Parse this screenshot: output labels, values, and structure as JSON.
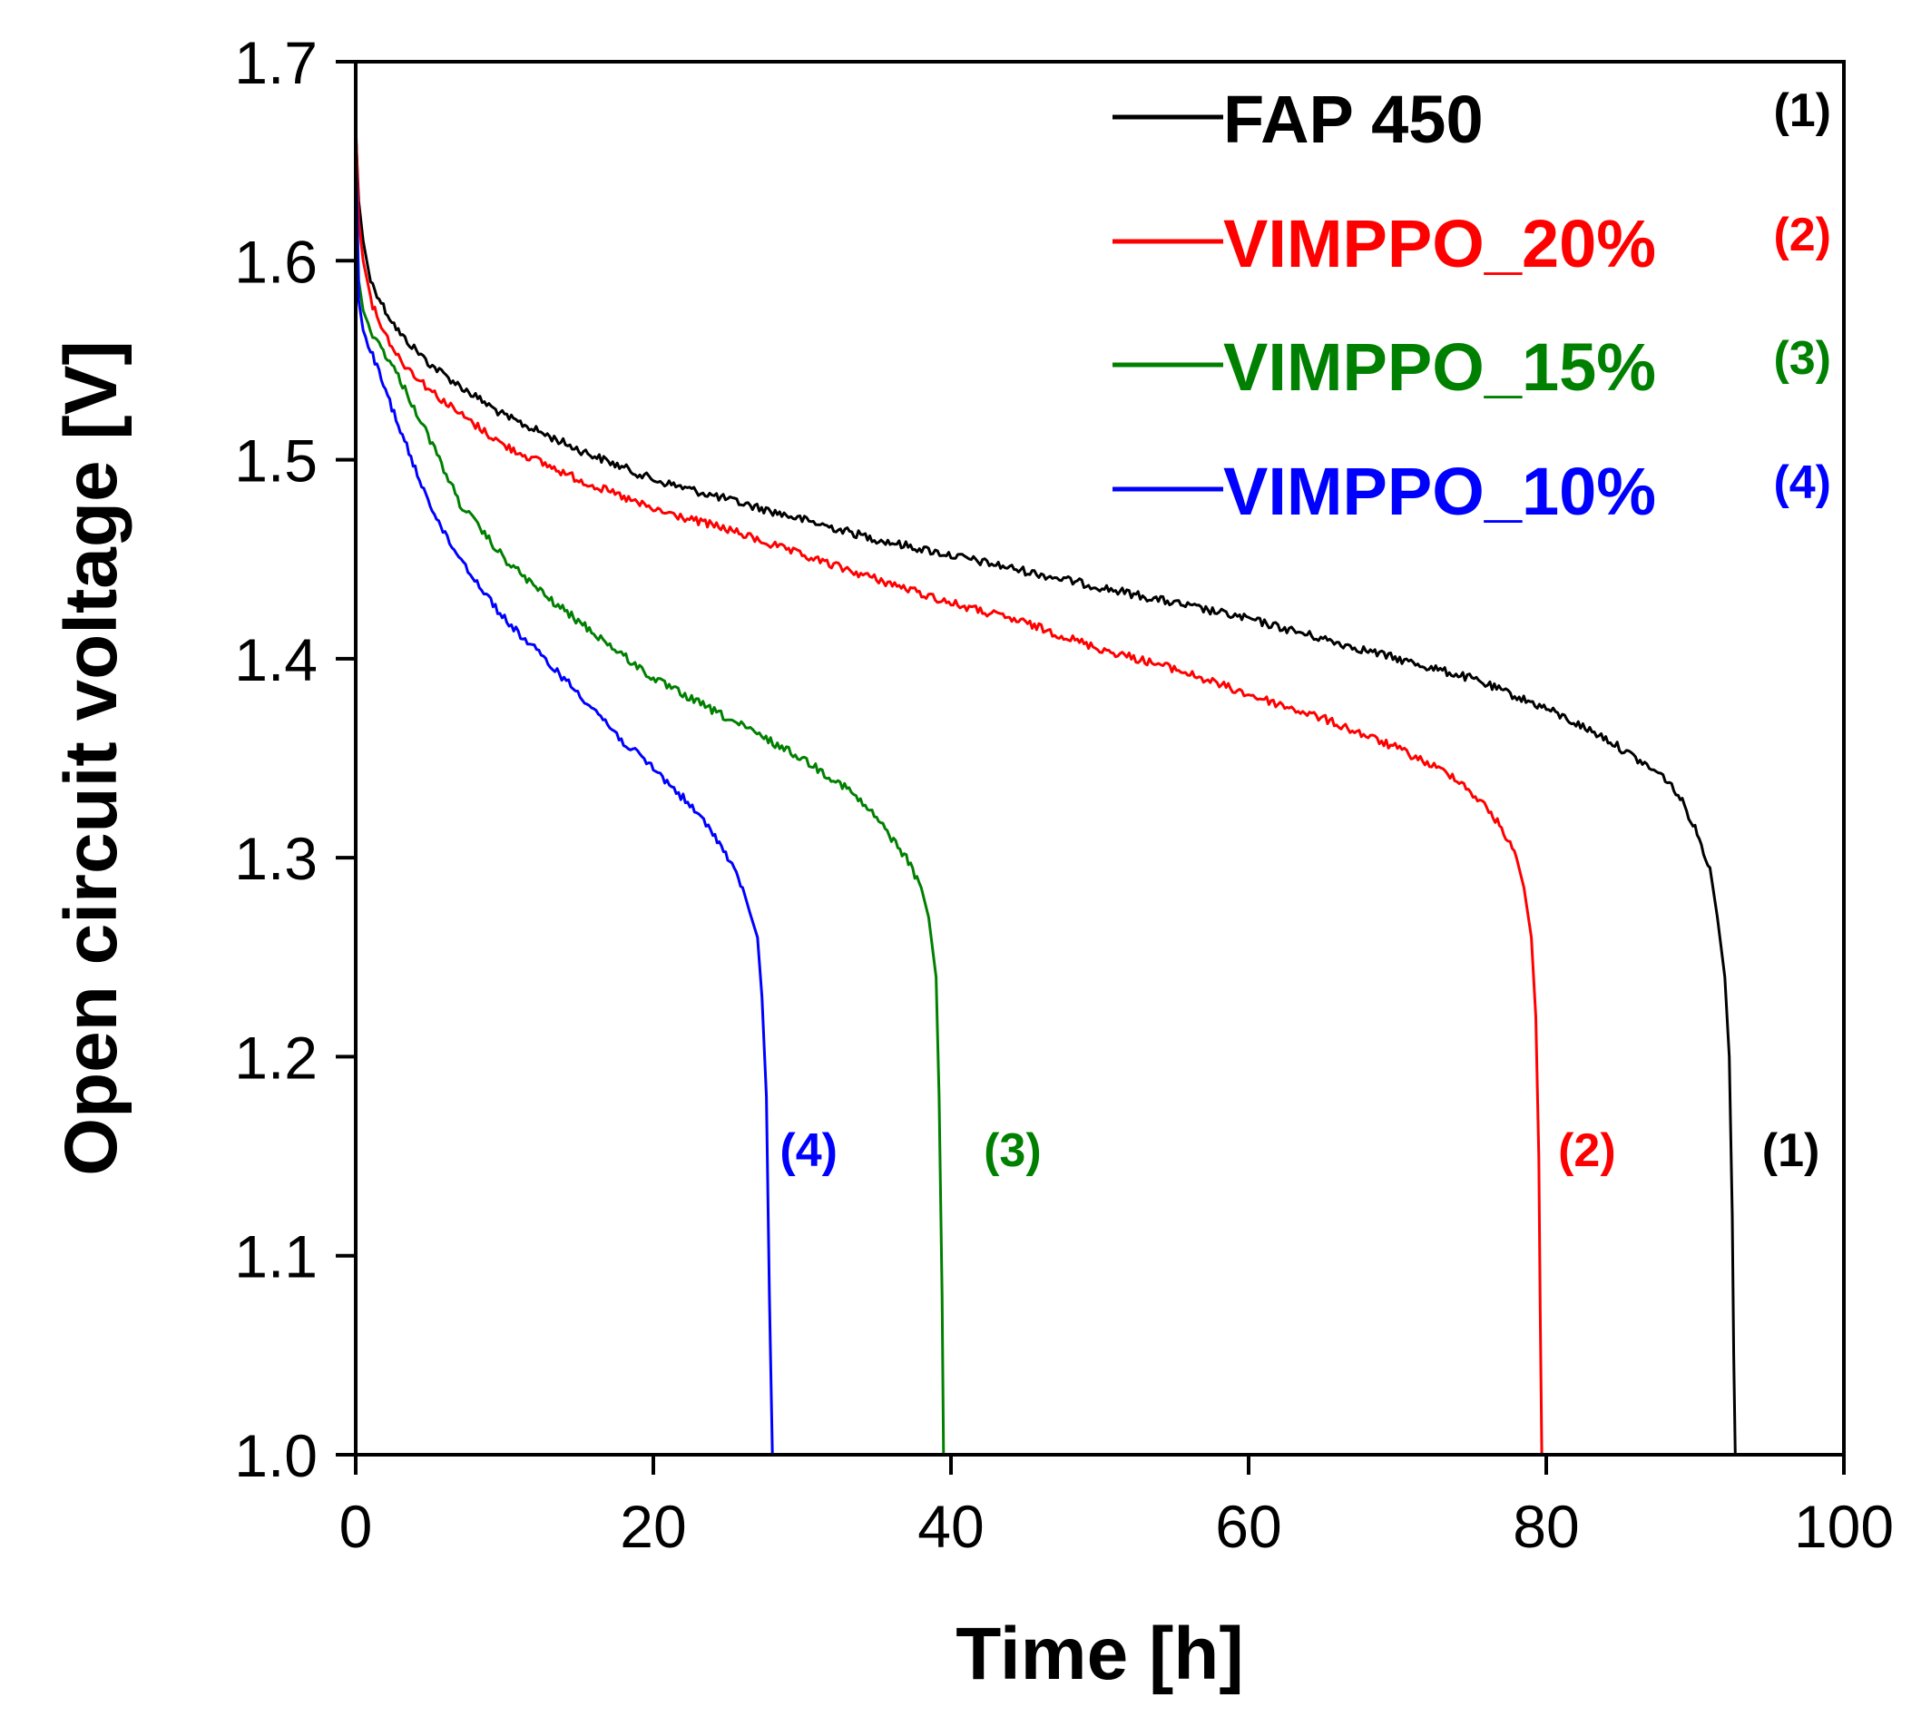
{
  "chart_data": {
    "type": "line",
    "title": "",
    "xlabel": "Time [h]",
    "ylabel": "Open circuit voltage [V]",
    "xlim": [
      0,
      100
    ],
    "ylim": [
      1.0,
      1.7
    ],
    "xticks": [
      0,
      20,
      40,
      60,
      80,
      100
    ],
    "xtick_labels": [
      "0",
      "20",
      "40",
      "60",
      "80",
      "100"
    ],
    "yticks": [
      1.0,
      1.1,
      1.2,
      1.3,
      1.4,
      1.5,
      1.6,
      1.7
    ],
    "ytick_labels": [
      "1.0",
      "1.1",
      "1.2",
      "1.3",
      "1.4",
      "1.5",
      "1.6",
      "1.7"
    ],
    "grid": false,
    "legend_position": "top-right",
    "series": [
      {
        "name": "FAP 450",
        "marker": "(1)",
        "color": "#000000",
        "x": [
          0,
          0.2,
          0.5,
          1,
          2,
          3,
          5,
          7,
          10,
          15,
          20,
          25,
          30,
          35,
          40,
          45,
          50,
          55,
          60,
          65,
          70,
          75,
          80,
          84,
          86,
          88,
          89,
          90,
          91,
          91.5,
          92,
          92.3,
          92.5,
          92.6,
          92.7
        ],
        "y": [
          1.665,
          1.63,
          1.61,
          1.59,
          1.575,
          1.563,
          1.548,
          1.537,
          1.522,
          1.505,
          1.49,
          1.48,
          1.47,
          1.46,
          1.452,
          1.444,
          1.436,
          1.428,
          1.42,
          1.41,
          1.4,
          1.39,
          1.375,
          1.36,
          1.35,
          1.34,
          1.33,
          1.315,
          1.295,
          1.27,
          1.24,
          1.2,
          1.12,
          1.05,
          1.0
        ]
      },
      {
        "name": "VIMPPO_20%",
        "marker": "(2)",
        "color": "#ff0000",
        "x": [
          0,
          0.2,
          0.5,
          1,
          2,
          3,
          5,
          7,
          10,
          15,
          20,
          25,
          30,
          35,
          40,
          45,
          50,
          55,
          60,
          65,
          70,
          74,
          76,
          77,
          78,
          78.5,
          79,
          79.3,
          79.5,
          79.6,
          79.7
        ],
        "y": [
          1.67,
          1.62,
          1.6,
          1.58,
          1.563,
          1.55,
          1.535,
          1.523,
          1.507,
          1.49,
          1.475,
          1.465,
          1.452,
          1.44,
          1.428,
          1.418,
          1.405,
          1.395,
          1.382,
          1.37,
          1.355,
          1.34,
          1.325,
          1.315,
          1.3,
          1.285,
          1.26,
          1.22,
          1.15,
          1.07,
          1.0
        ]
      },
      {
        "name": "VIMPPO_15%",
        "marker": "(3)",
        "color": "#008000",
        "x": [
          0,
          0.2,
          0.5,
          1,
          2,
          3,
          5,
          7,
          10,
          13,
          16,
          20,
          25,
          30,
          33,
          35,
          36,
          37,
          38,
          38.5,
          39,
          39.2,
          39.4,
          39.5
        ],
        "y": [
          1.655,
          1.59,
          1.575,
          1.565,
          1.553,
          1.54,
          1.51,
          1.478,
          1.45,
          1.43,
          1.413,
          1.39,
          1.37,
          1.35,
          1.335,
          1.32,
          1.31,
          1.3,
          1.285,
          1.27,
          1.24,
          1.18,
          1.08,
          1.0
        ]
      },
      {
        "name": "VIMPPO_10%",
        "marker": "(4)",
        "color": "#0000ff",
        "x": [
          0,
          0.2,
          0.5,
          1,
          2,
          3,
          4,
          5,
          6,
          8,
          10,
          12,
          14,
          16,
          18,
          20,
          22,
          24,
          25,
          26,
          26.5,
          27,
          27.3,
          27.6,
          27.8,
          28
        ],
        "y": [
          1.66,
          1.58,
          1.565,
          1.555,
          1.535,
          1.515,
          1.495,
          1.478,
          1.462,
          1.44,
          1.42,
          1.405,
          1.39,
          1.375,
          1.358,
          1.345,
          1.33,
          1.313,
          1.3,
          1.285,
          1.272,
          1.26,
          1.23,
          1.18,
          1.08,
          1.0
        ]
      }
    ],
    "curve_annotations": [
      {
        "text": "(4)",
        "x": 28.5,
        "y": 1.145,
        "series": 3
      },
      {
        "text": "(3)",
        "x": 42.2,
        "y": 1.145,
        "series": 2
      },
      {
        "text": "(2)",
        "x": 80.8,
        "y": 1.145,
        "series": 1
      },
      {
        "text": "(1)",
        "x": 94.5,
        "y": 1.145,
        "series": 0
      }
    ]
  }
}
